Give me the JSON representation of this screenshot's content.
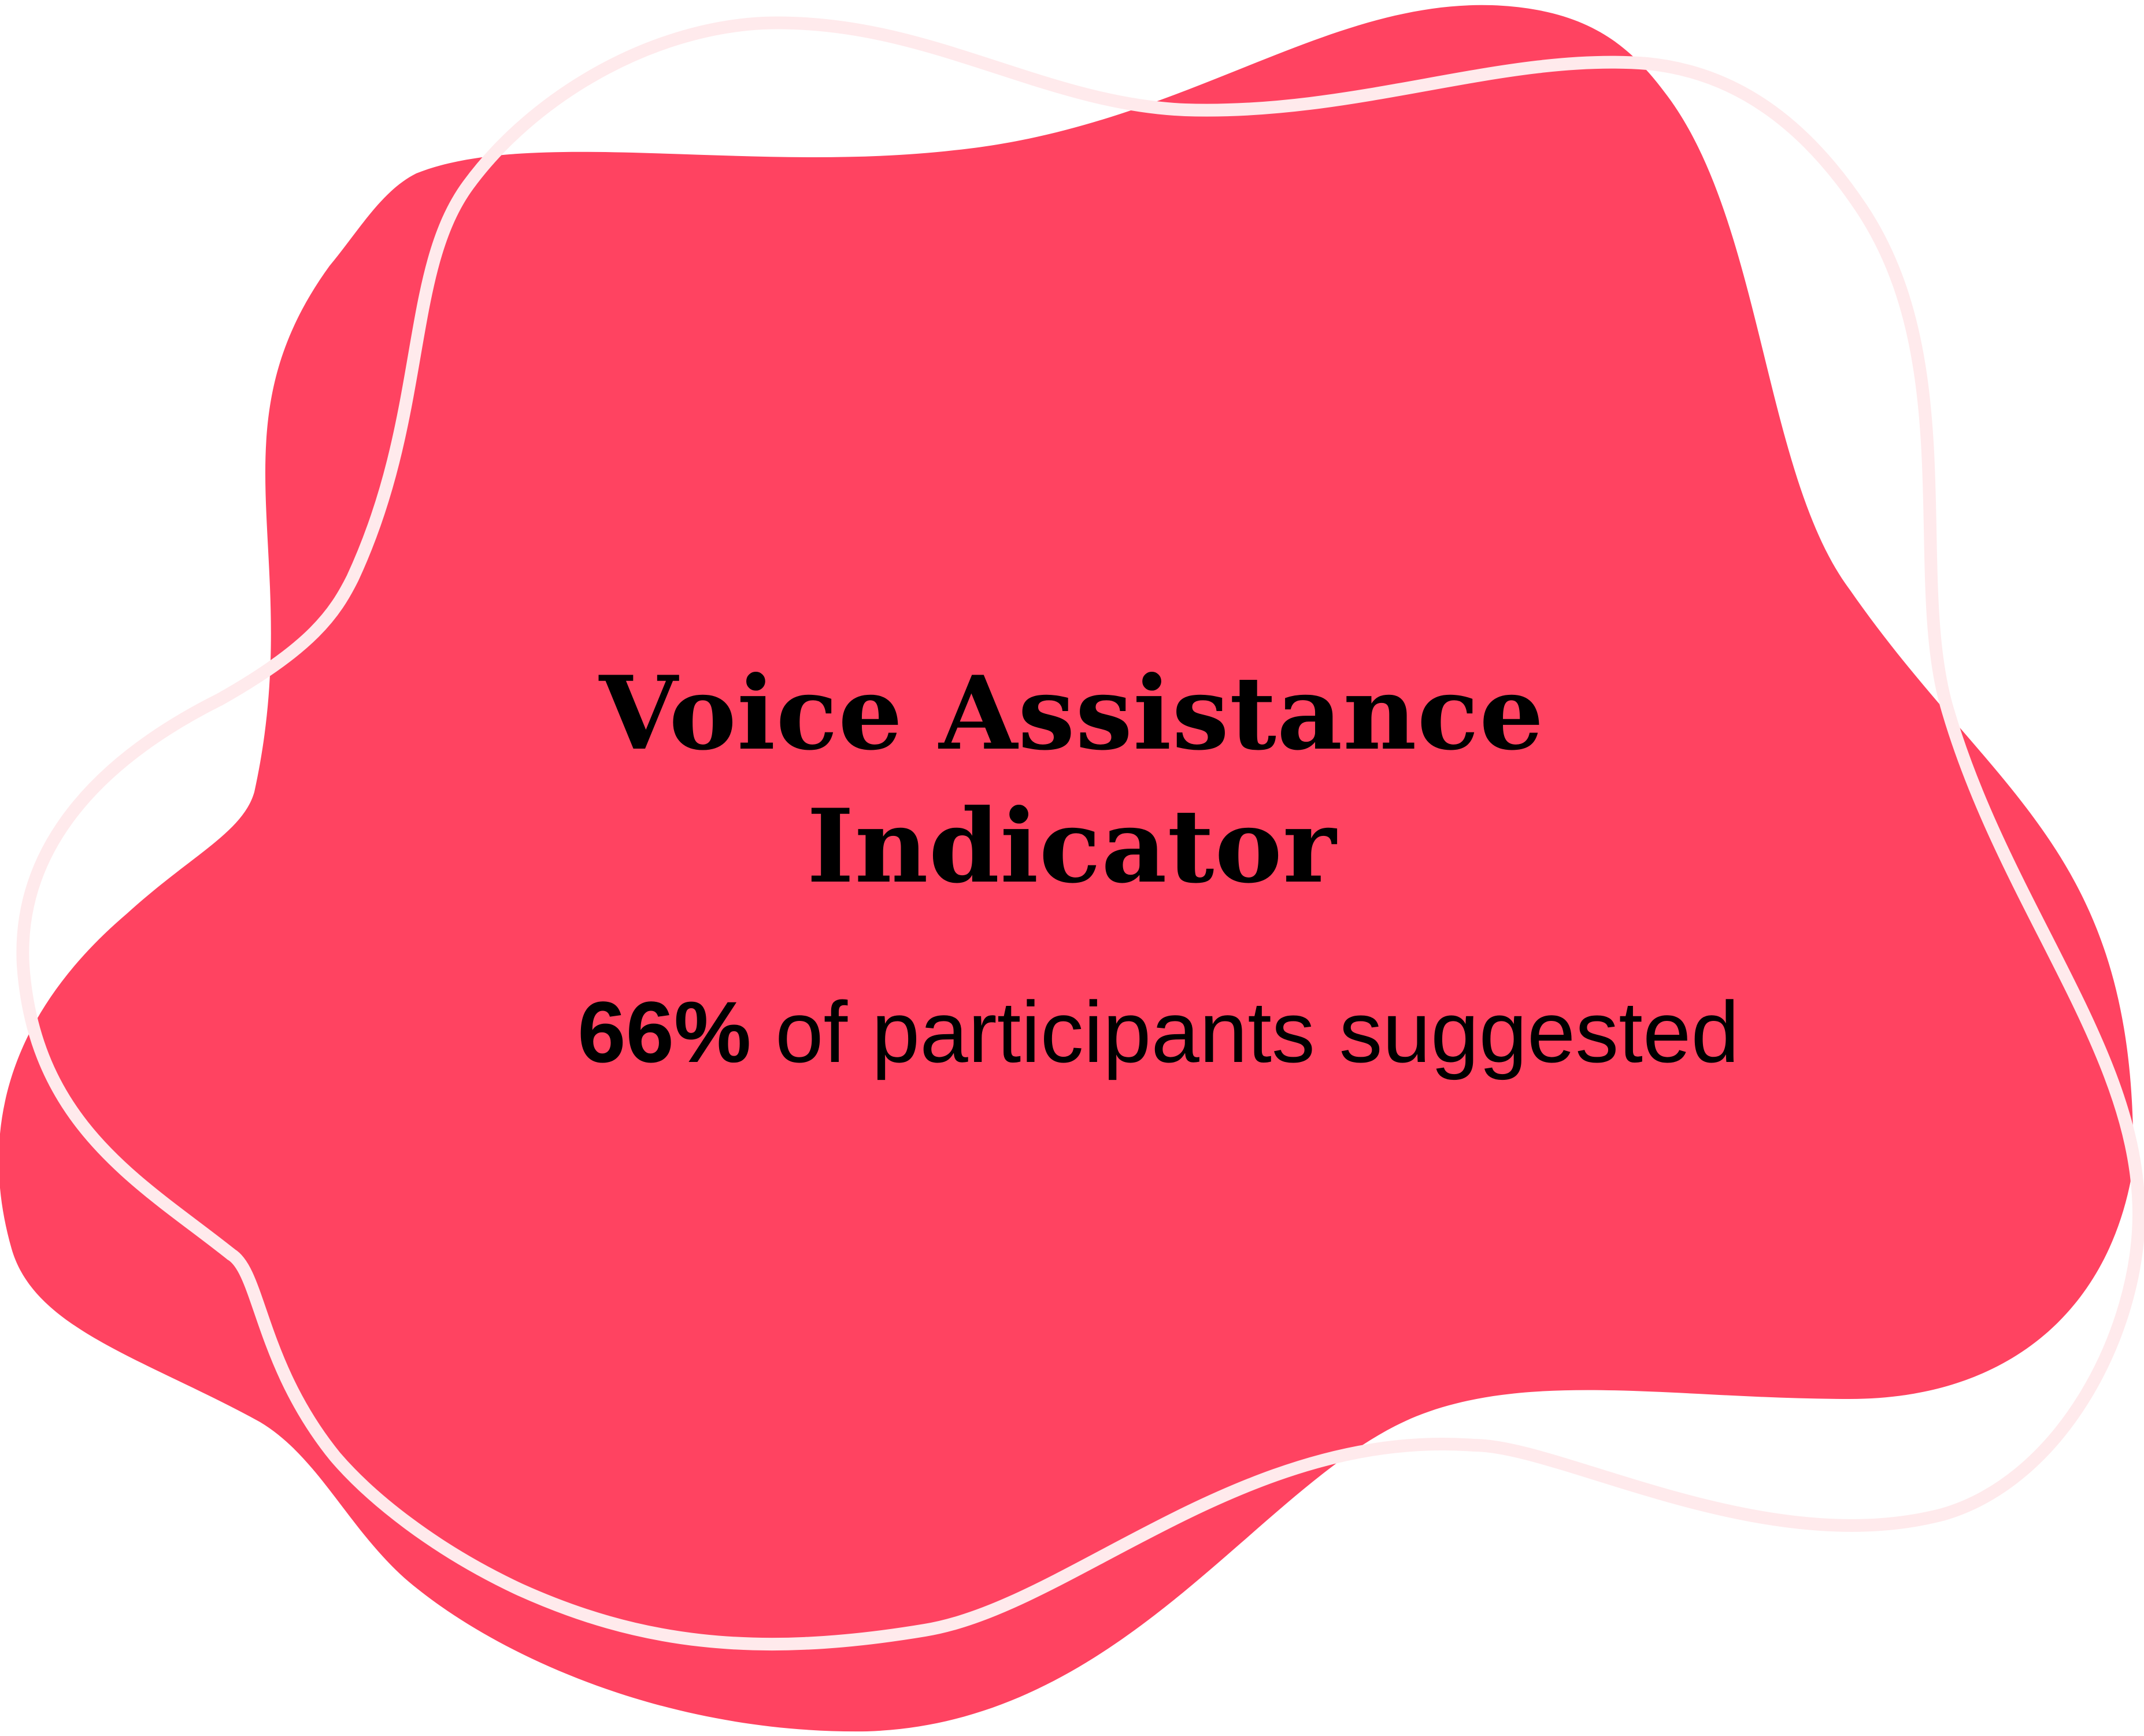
{
  "card": {
    "title_line1": "Voice Assistance",
    "title_line2": "Indicator",
    "stat_value": "66%",
    "stat_text": "of participants suggested"
  },
  "colors": {
    "blob_fill": "#ff4361",
    "blob_outline": "#ffeaec",
    "text": "#000000",
    "background": "#ffffff"
  }
}
